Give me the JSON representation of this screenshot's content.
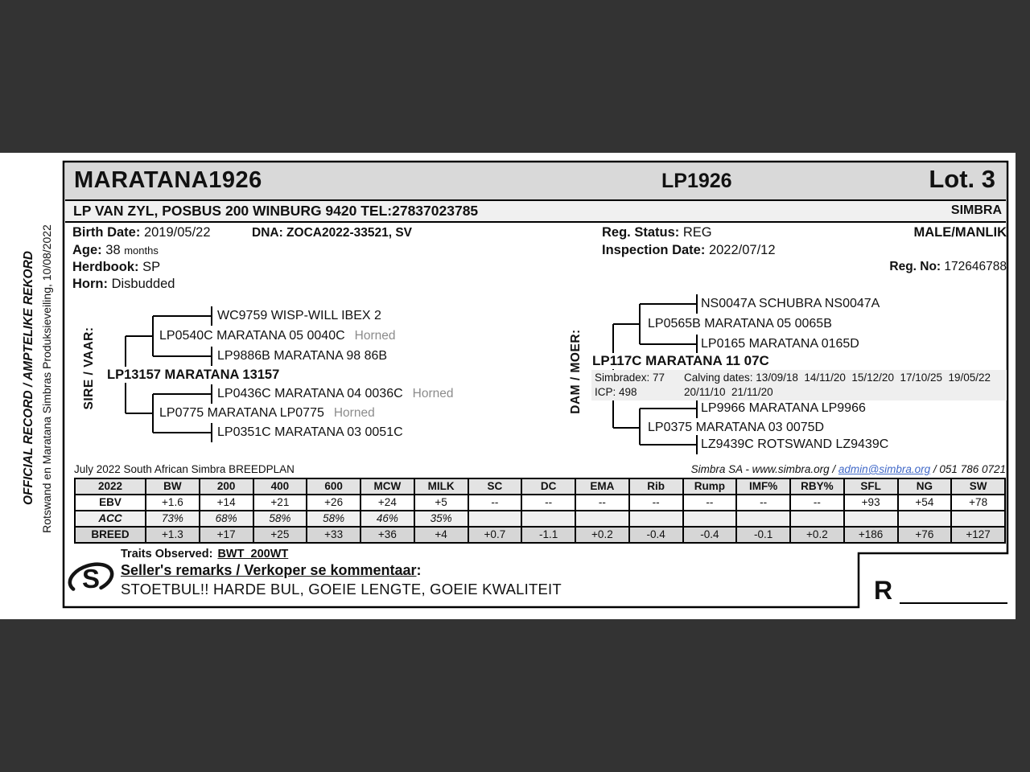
{
  "header": {
    "animal_name": "MARATANA1926",
    "tag": "LP1926",
    "lot": "Lot. 3"
  },
  "owner_bar": {
    "owner": "LP VAN ZYL, POSBUS 200 WINBURG 9420 TEL:27837023785",
    "breed": "SIMBRA"
  },
  "margin": {
    "line1": "OFFICIAL RECORD / AMPTELIKE REKORD",
    "line2": "Rotswand en Maratana Simbras Produksieveiling, 10/08/2022"
  },
  "details": {
    "birth_date_label": "Birth Date:",
    "birth_date": "2019/05/22",
    "dna": "DNA: ZOCA2022-33521, SV",
    "age_label": "Age:",
    "age_value": "38",
    "age_unit": "months",
    "herdbook_label": "Herdbook:",
    "herdbook": "SP",
    "horn_label": "Horn:",
    "horn": "Disbudded",
    "reg_status_label": "Reg. Status:",
    "reg_status": "REG",
    "inspection_label": "Inspection Date:",
    "inspection": "2022/07/12",
    "sex": "MALE/MANLIK",
    "reg_no_label": "Reg. No:",
    "reg_no": "172646788"
  },
  "sire": {
    "label": "SIRE / VAAR:",
    "name": "LP13157 MARATANA 13157",
    "parents": [
      {
        "name": "LP0540C MARATANA 05 0040C",
        "note": "Horned"
      },
      {
        "name": "LP0775 MARATANA LP0775",
        "note": "Horned"
      }
    ],
    "grandparents": [
      {
        "name": "WC9759 WISP-WILL IBEX 2",
        "note": ""
      },
      {
        "name": "LP9886B MARATANA 98 86B",
        "note": ""
      },
      {
        "name": "LP0436C MARATANA 04 0036C",
        "note": "Horned"
      },
      {
        "name": "LP0351C MARATANA 03 0051C",
        "note": ""
      }
    ]
  },
  "dam": {
    "label": "DAM / MOER:",
    "name": "LP117C MARATANA 11 07C",
    "stats_line1_left": "Simbradex: 77",
    "stats_line1_right": "Calving dates: 13/09/18  14/11/20  15/12/20  17/10/25  19/05/22",
    "stats_line2_left": "ICP: 498",
    "stats_line2_right": "20/11/10  21/11/20",
    "parents": [
      {
        "name": "LP0565B MARATANA 05 0065B",
        "note": ""
      },
      {
        "name": "LP0375 MARATANA 03 0075D",
        "note": ""
      }
    ],
    "grandparents": [
      {
        "name": "NS0047A SCHUBRA NS0047A",
        "note": ""
      },
      {
        "name": "LP0165 MARATANA 0165D",
        "note": ""
      },
      {
        "name": "LP9966 MARATANA LP9966",
        "note": ""
      },
      {
        "name": "LZ9439C ROTSWAND LZ9439C",
        "note": ""
      }
    ]
  },
  "breedplan": {
    "caption_left": "July 2022 South African Simbra BREEDPLAN",
    "caption_right_prefix": "Simbra SA - www.simbra.org / ",
    "caption_right_link": "admin@simbra.org",
    "caption_right_suffix": " / 051 786 0721",
    "headers": [
      "2022",
      "BW",
      "200",
      "400",
      "600",
      "MCW",
      "MILK",
      "SC",
      "DC",
      "EMA",
      "Rib",
      "Rump",
      "IMF%",
      "RBY%",
      "SFL",
      "NG",
      "SW"
    ],
    "rows": [
      {
        "label": "EBV",
        "values": [
          "+1.6",
          "+14",
          "+21",
          "+26",
          "+24",
          "+5",
          "--",
          "--",
          "--",
          "--",
          "--",
          "--",
          "--",
          "+93",
          "+54",
          "+78"
        ]
      },
      {
        "label": "ACC",
        "values": [
          "73%",
          "68%",
          "58%",
          "58%",
          "46%",
          "35%",
          "",
          "",
          "",
          "",
          "",
          "",
          "",
          "",
          "",
          ""
        ]
      },
      {
        "label": "BREED",
        "values": [
          "+1.3",
          "+17",
          "+25",
          "+33",
          "+36",
          "+4",
          "+0.7",
          "-1.1",
          "+0.2",
          "-0.4",
          "-0.4",
          "-0.1",
          "+0.2",
          "+186",
          "+76",
          "+127"
        ]
      }
    ]
  },
  "footer": {
    "traits_label": "Traits Observed:",
    "traits_value": "BWT  200WT",
    "remarks_label": "Seller's remarks / Verkoper se kommentaar",
    "remarks_colon": ":",
    "remarks": "STOETBUL!! HARDE BUL, GOEIE LENGTE, GOEIE KWALITEIT",
    "logo_letter": "S",
    "price_prefix": "R"
  },
  "colors": {
    "frame": "#333333",
    "title_band": "#d9d9d9",
    "owner_band": "#f0f0f0",
    "dam_band": "#efefef",
    "table_header": "#e3e3e3",
    "table_acc_row": "#f0f0f0",
    "table_breed_row": "#d6d6d6",
    "link_blue": "#4169c8",
    "horned_gray": "#8c8c8c"
  }
}
